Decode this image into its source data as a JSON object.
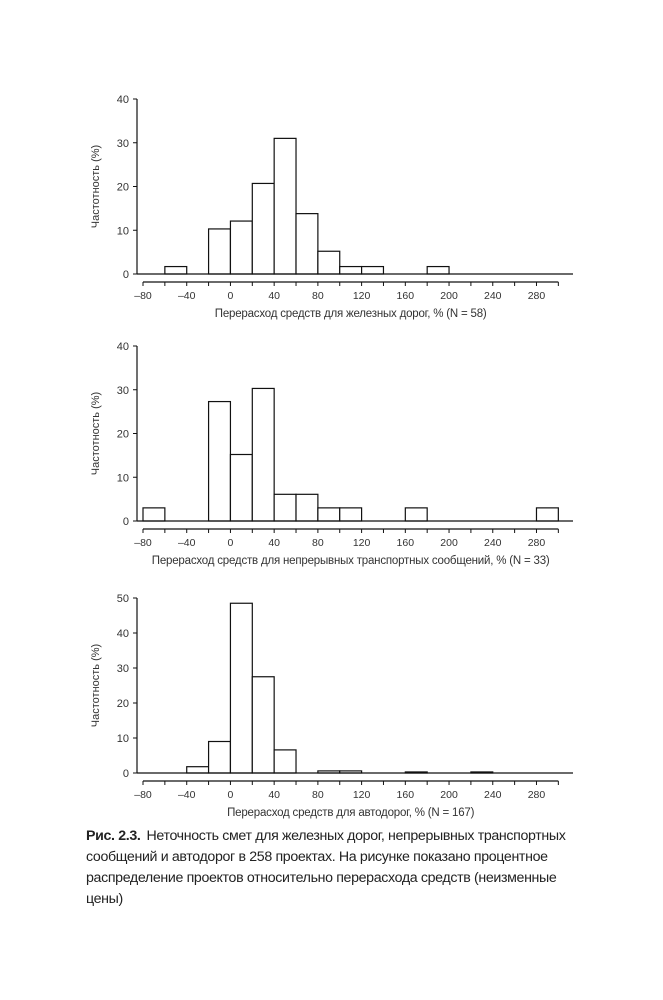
{
  "chart_data": [
    {
      "type": "bar",
      "title": "",
      "xlabel": "Перерасход средств для железных дорог, % (N = 58)",
      "ylabel": "Частотность (%)",
      "ylim": [
        0,
        40
      ],
      "yticks": [
        "0",
        "10",
        "20",
        "30",
        "40"
      ],
      "xlim": [
        -80,
        300
      ],
      "xticks": [
        "–80",
        "–40",
        "0",
        "40",
        "80",
        "120",
        "160",
        "200",
        "240",
        "280"
      ],
      "bin_width": 20,
      "bins": [
        {
          "start": -60,
          "value": 1.7
        },
        {
          "start": -20,
          "value": 10.3
        },
        {
          "start": 0,
          "value": 12.1
        },
        {
          "start": 20,
          "value": 20.7
        },
        {
          "start": 40,
          "value": 31.0
        },
        {
          "start": 60,
          "value": 13.8
        },
        {
          "start": 80,
          "value": 5.2
        },
        {
          "start": 100,
          "value": 1.7
        },
        {
          "start": 120,
          "value": 1.7
        },
        {
          "start": 180,
          "value": 1.7
        }
      ]
    },
    {
      "type": "bar",
      "title": "",
      "xlabel": "Перерасход средств для непрерывных транспортных сообщений, % (N = 33)",
      "ylabel": "Частотность (%)",
      "ylim": [
        0,
        40
      ],
      "yticks": [
        "0",
        "10",
        "20",
        "30",
        "40"
      ],
      "xlim": [
        -80,
        300
      ],
      "xticks": [
        "–80",
        "–40",
        "0",
        "40",
        "80",
        "120",
        "160",
        "200",
        "240",
        "280"
      ],
      "bin_width": 20,
      "bins": [
        {
          "start": -80,
          "value": 3.0
        },
        {
          "start": -20,
          "value": 27.3
        },
        {
          "start": 0,
          "value": 15.2
        },
        {
          "start": 20,
          "value": 30.3
        },
        {
          "start": 40,
          "value": 6.1
        },
        {
          "start": 60,
          "value": 6.1
        },
        {
          "start": 80,
          "value": 3.0
        },
        {
          "start": 100,
          "value": 3.0
        },
        {
          "start": 160,
          "value": 3.0
        },
        {
          "start": 280,
          "value": 3.0
        }
      ]
    },
    {
      "type": "bar",
      "title": "",
      "xlabel": "Перерасход средств для автодорог, % (N = 167)",
      "ylabel": "Частотность (%)",
      "ylim": [
        0,
        50
      ],
      "yticks": [
        "0",
        "10",
        "20",
        "30",
        "40",
        "50"
      ],
      "xlim": [
        -80,
        300
      ],
      "xticks": [
        "–80",
        "–40",
        "0",
        "40",
        "80",
        "120",
        "160",
        "200",
        "240",
        "280"
      ],
      "bin_width": 20,
      "bins": [
        {
          "start": -40,
          "value": 1.8
        },
        {
          "start": -20,
          "value": 9.0
        },
        {
          "start": 0,
          "value": 48.5
        },
        {
          "start": 20,
          "value": 27.5
        },
        {
          "start": 40,
          "value": 6.6
        },
        {
          "start": 80,
          "value": 0.6
        },
        {
          "start": 100,
          "value": 0.6
        },
        {
          "start": 160,
          "value": 0.3
        },
        {
          "start": 220,
          "value": 0.3
        }
      ]
    }
  ],
  "caption": {
    "label": "Рис. 2.3.",
    "lines": [
      "Неточность смет для железных дорог, непрерывных транспортных",
      "сообщений и автодорог в 258 проектах. На рисунке показано процентное",
      "распределение проектов относительно перерасхода средств (неизменные",
      "цены)"
    ]
  }
}
